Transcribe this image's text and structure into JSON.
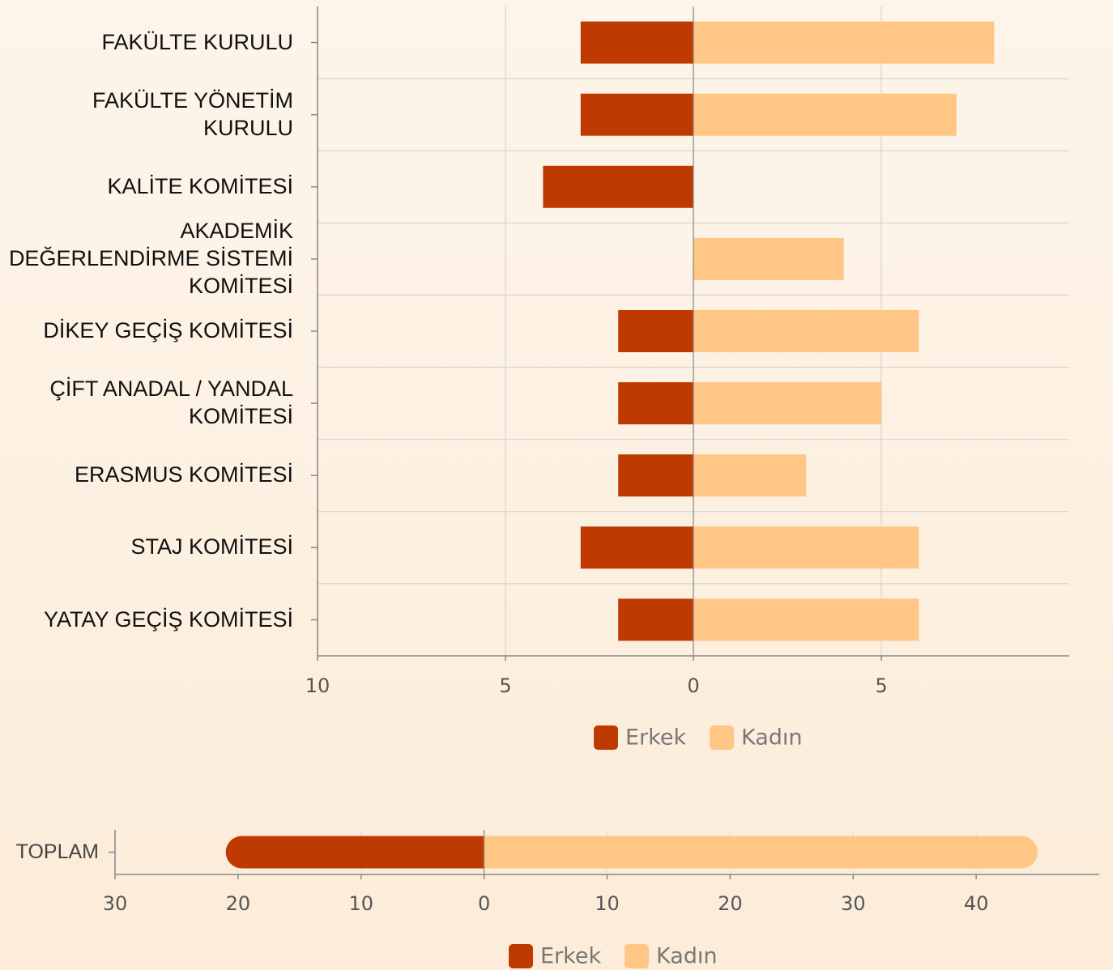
{
  "chart_data": [
    {
      "type": "bar",
      "orientation": "horizontal",
      "grid": true,
      "legend": "bottom",
      "categories": [
        "FAKÜLTE KURULU",
        "FAKÜLTE YÖNETİM KURULU",
        "KALİTE KOMİTESİ",
        "AKADEMİK DEĞERLENDİRME SİSTEMİ KOMİTESİ",
        "DİKEY GEÇİŞ KOMİTESİ",
        "ÇİFT ANADAL / YANDAL KOMİTESİ",
        "ERASMUS KOMİTESİ",
        "STAJ KOMİTESİ",
        "YATAY GEÇİŞ KOMİTESİ"
      ],
      "series": [
        {
          "name": "Erkek",
          "color": "#bf3a00",
          "values": [
            -3,
            -3,
            -4,
            0,
            -2,
            -2,
            -2,
            -3,
            -2
          ]
        },
        {
          "name": "Kadın",
          "color": "#ffc685",
          "values": [
            8,
            7,
            0,
            4,
            6,
            5,
            3,
            6,
            6
          ]
        }
      ],
      "xlim": [
        -10,
        10
      ],
      "xticks": [
        {
          "value": -10,
          "label": "10"
        },
        {
          "value": -5,
          "label": "5"
        },
        0,
        5
      ]
    },
    {
      "type": "bar",
      "orientation": "horizontal",
      "grid": true,
      "legend": "bottom",
      "categories": [
        "TOPLAM"
      ],
      "series": [
        {
          "name": "Erkek",
          "color": "#bf3a00",
          "values": [
            -21
          ]
        },
        {
          "name": "Kadın",
          "color": "#ffc685",
          "values": [
            45
          ]
        }
      ],
      "xlim": [
        -30,
        50
      ],
      "xticks": [
        {
          "value": -30,
          "label": "30"
        },
        {
          "value": -20,
          "label": "20"
        },
        {
          "value": -10,
          "label": "10"
        },
        0,
        10,
        20,
        30,
        40
      ]
    }
  ]
}
